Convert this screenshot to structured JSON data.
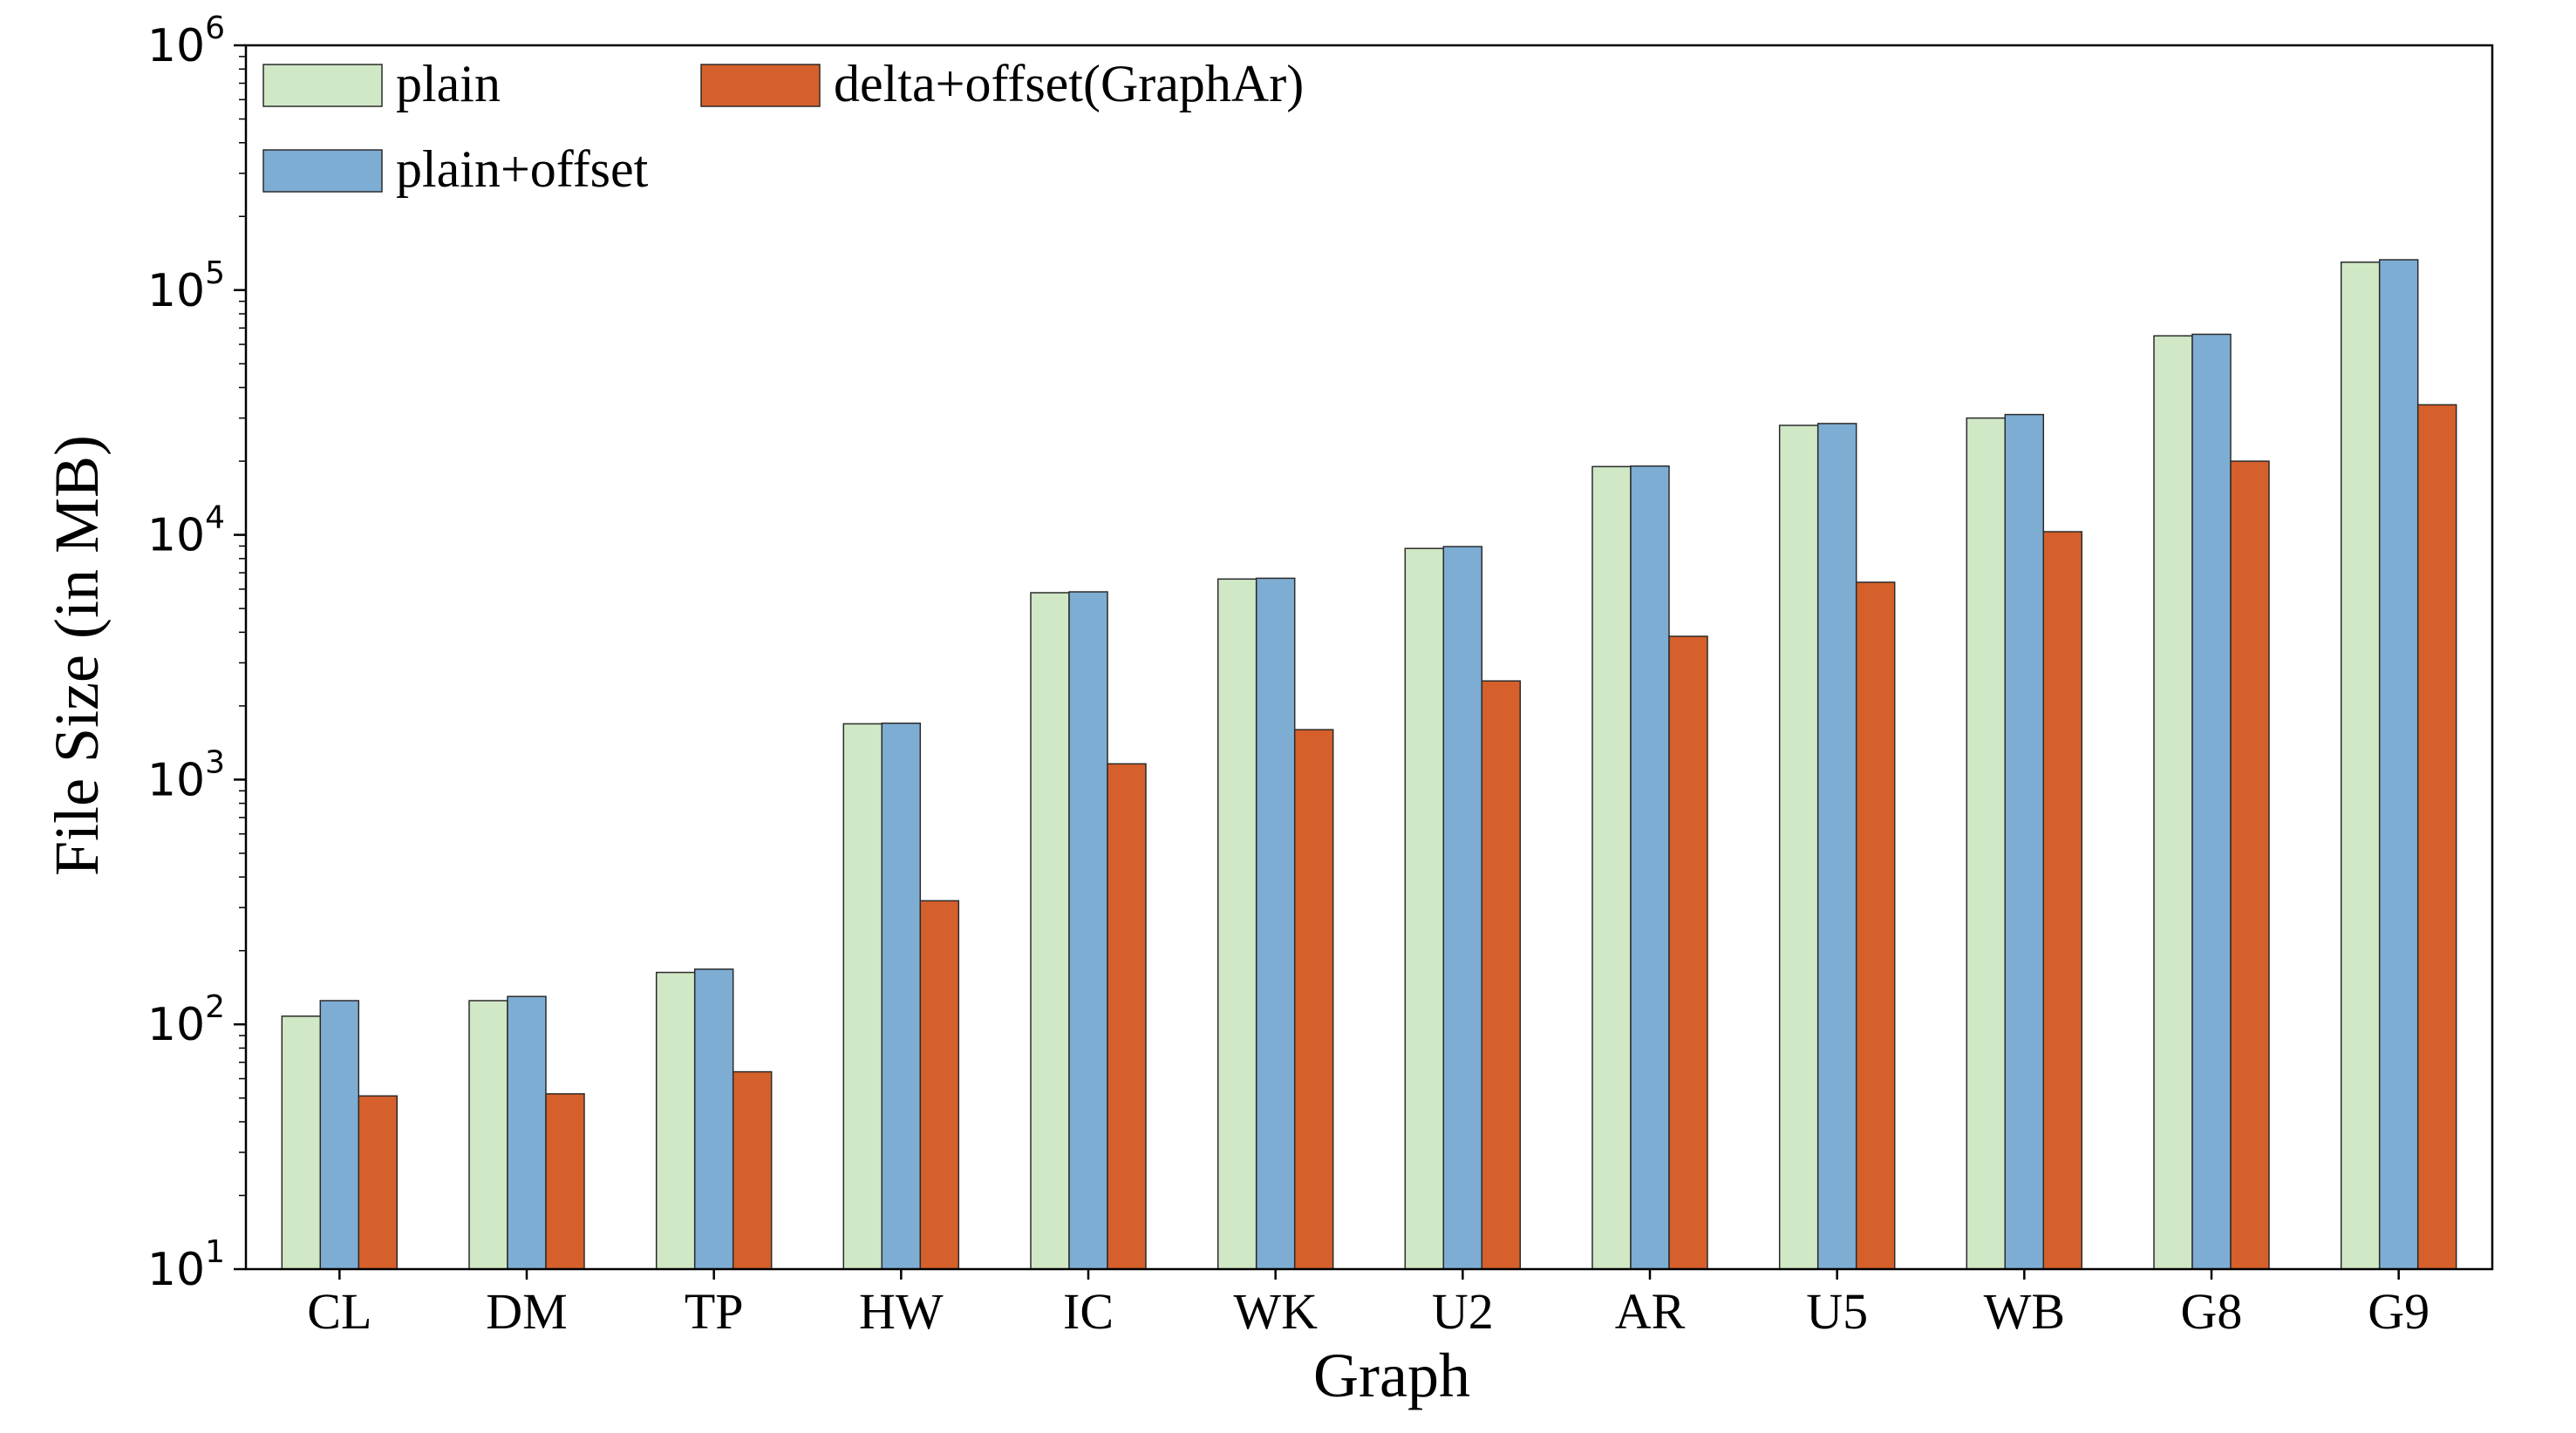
{
  "chart_data": {
    "type": "bar",
    "title": "",
    "xlabel": "Graph",
    "ylabel": "File Size (in MB)",
    "yscale": "log",
    "ylim": [
      10,
      1000000
    ],
    "yticks": [
      {
        "value": 10,
        "base": "10",
        "exp": "1"
      },
      {
        "value": 100,
        "base": "10",
        "exp": "2"
      },
      {
        "value": 1000,
        "base": "10",
        "exp": "3"
      },
      {
        "value": 10000,
        "base": "10",
        "exp": "4"
      },
      {
        "value": 100000,
        "base": "10",
        "exp": "5"
      },
      {
        "value": 1000000,
        "base": "10",
        "exp": "6"
      }
    ],
    "grid": false,
    "legend_position": "top-left",
    "categories": [
      "CL",
      "DM",
      "TP",
      "HW",
      "IC",
      "WK",
      "U2",
      "AR",
      "U5",
      "WB",
      "G8",
      "G9"
    ],
    "series": [
      {
        "name": "plain",
        "color": "#d0e8c5",
        "values": [
          108,
          125,
          163,
          1690,
          5800,
          6600,
          8800,
          19000,
          28000,
          30000,
          65000,
          130000
        ]
      },
      {
        "name": "plain+offset",
        "color": "#7eadd4",
        "values": [
          125,
          130,
          168,
          1700,
          5850,
          6650,
          8950,
          19100,
          28500,
          31000,
          66000,
          133000
        ]
      },
      {
        "name": "delta+offset(GraphAr)",
        "color": "#d6602b",
        "values": [
          51,
          52,
          64,
          320,
          1160,
          1600,
          2530,
          3850,
          6400,
          10300,
          20000,
          34000
        ]
      }
    ]
  }
}
